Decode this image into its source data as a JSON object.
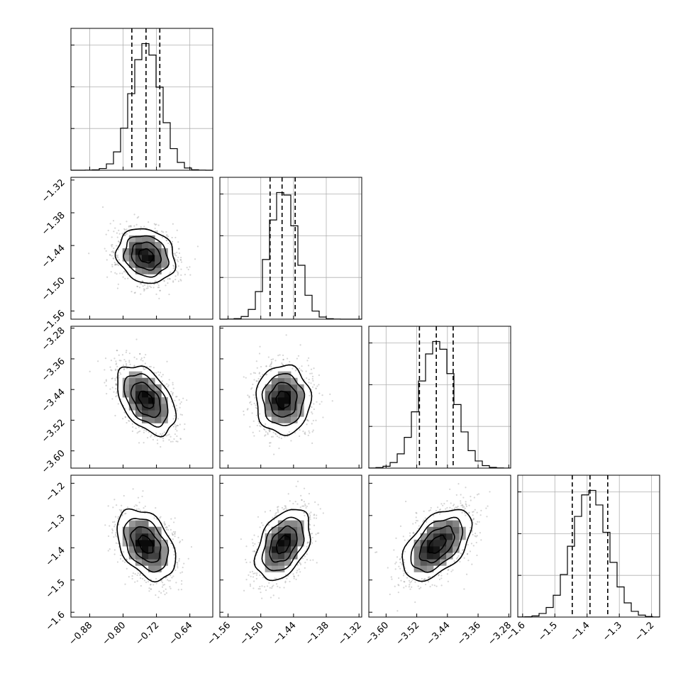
{
  "chart_data": {
    "type": "corner",
    "parameters": [
      {
        "mean": -0.745,
        "sd": 0.035,
        "quantiles": [
          -0.779,
          -0.745,
          -0.712
        ],
        "range": [
          -0.925,
          -0.585
        ],
        "ticks": [
          -0.88,
          -0.8,
          -0.72,
          -0.64
        ],
        "tick_labels": [
          "−0.88",
          "−0.80",
          "−0.72",
          "−0.64"
        ]
      },
      {
        "mean": -1.459,
        "sd": 0.025,
        "quantiles": [
          -1.483,
          -1.461,
          -1.437
        ],
        "range": [
          -1.575,
          -1.315
        ],
        "ticks": [
          -1.56,
          -1.5,
          -1.44,
          -1.38,
          -1.32
        ],
        "tick_labels": [
          "−1.56",
          "−1.50",
          "−1.44",
          "−1.38",
          "−1.32"
        ]
      },
      {
        "mean": -3.467,
        "sd": 0.045,
        "quantiles": [
          -3.513,
          -3.469,
          -3.425
        ],
        "range": [
          -3.645,
          -3.275
        ],
        "ticks": [
          -3.6,
          -3.52,
          -3.44,
          -3.36,
          -3.28
        ],
        "tick_labels": [
          "−3.60",
          "−3.52",
          "−3.44",
          "−3.36",
          "−3.28"
        ]
      },
      {
        "mean": -1.39,
        "sd": 0.055,
        "quantiles": [
          -1.446,
          -1.391,
          -1.336
        ],
        "range": [
          -1.615,
          -1.175
        ],
        "ticks": [
          -1.6,
          -1.5,
          -1.4,
          -1.3,
          -1.2
        ],
        "tick_labels": [
          "−1.6",
          "−1.5",
          "−1.4",
          "−1.3",
          "−1.2"
        ]
      }
    ],
    "correlations": [
      [
        1.0,
        -0.15,
        -0.45,
        -0.4
      ],
      [
        -0.15,
        1.0,
        0.0,
        0.4
      ],
      [
        -0.45,
        0.0,
        1.0,
        0.5
      ],
      [
        -0.4,
        0.4,
        0.5,
        1.0
      ]
    ],
    "histogram_bins": 20,
    "contour_levels_sigma": [
      0.5,
      1.0,
      1.5,
      2.0
    ],
    "grid": true
  }
}
